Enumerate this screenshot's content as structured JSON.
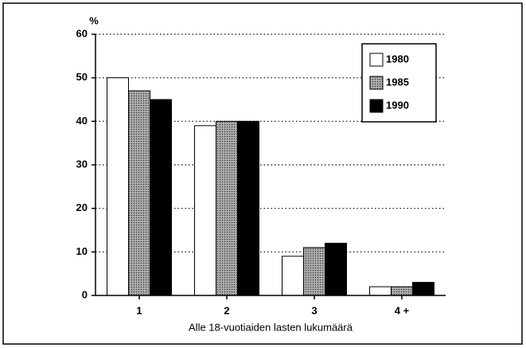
{
  "chart_data": {
    "type": "bar",
    "y_label": "%",
    "x_label": "Alle 18-vuotiaiden lasten lukumäärä",
    "categories": [
      "1",
      "2",
      "3",
      "4 +"
    ],
    "series": [
      {
        "name": "1980",
        "color": "#ffffff",
        "values": [
          50,
          39,
          9,
          2
        ]
      },
      {
        "name": "1985",
        "color": "#9a9a9a",
        "values": [
          47,
          40,
          11,
          2
        ]
      },
      {
        "name": "1990",
        "color": "#000000",
        "values": [
          45,
          40,
          12,
          3
        ]
      }
    ],
    "ylim": [
      0,
      60
    ],
    "yticks": [
      0,
      10,
      20,
      30,
      40,
      50,
      60
    ],
    "grid": true,
    "legend": "top-right"
  }
}
